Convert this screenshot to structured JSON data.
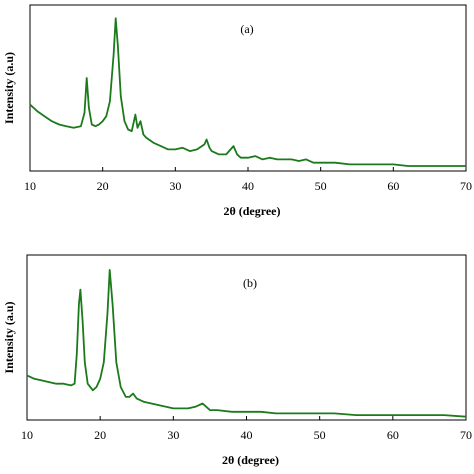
{
  "chart_data": [
    {
      "type": "line",
      "label": "(a)",
      "xlabel": "2θ (degree)",
      "ylabel": "Intensity (a.u)",
      "color": "#1b7a1b",
      "xlim": [
        10,
        70
      ],
      "xticks": [
        10,
        20,
        30,
        40,
        50,
        60,
        70
      ],
      "ylim": [
        0,
        100
      ],
      "x": [
        10,
        11,
        12,
        13,
        14,
        15,
        16,
        17,
        17.5,
        17.8,
        18.1,
        18.5,
        19,
        19.5,
        20,
        20.5,
        21,
        21.5,
        21.8,
        22.1,
        22.5,
        23,
        23.5,
        24,
        24.5,
        24.8,
        25.2,
        25.6,
        26,
        27,
        28,
        29,
        30,
        31,
        32,
        33,
        34,
        34.3,
        34.7,
        35,
        36,
        37,
        38,
        38.5,
        39,
        40,
        41,
        42,
        43,
        44,
        45,
        46,
        47,
        48,
        49,
        50,
        52,
        54,
        56,
        58,
        60,
        62,
        64,
        66,
        68,
        70
      ],
      "values": [
        40,
        36,
        33,
        30,
        28,
        27,
        26,
        27,
        35,
        56,
        38,
        28,
        27,
        28,
        30,
        33,
        42,
        70,
        92,
        75,
        45,
        30,
        25,
        24,
        34,
        26,
        30,
        22,
        20,
        17,
        15,
        13,
        13,
        14,
        12,
        13,
        16,
        19,
        14,
        12,
        10,
        10,
        15,
        10,
        8,
        8,
        9,
        7,
        8,
        7,
        7,
        7,
        6,
        7,
        5,
        5,
        5,
        4,
        4,
        4,
        4,
        3,
        3,
        3,
        3,
        3
      ]
    },
    {
      "type": "line",
      "label": "(b)",
      "xlabel": "2θ (degree)",
      "ylabel": "Intensity (a.u)",
      "color": "#1b7a1b",
      "xlim": [
        10,
        70
      ],
      "xticks": [
        10,
        20,
        30,
        40,
        50,
        60,
        70
      ],
      "ylim": [
        0,
        100
      ],
      "x": [
        10,
        11,
        12,
        13,
        14,
        15,
        16,
        16.5,
        16.8,
        17.1,
        17.3,
        17.6,
        17.9,
        18.3,
        19,
        19.5,
        20,
        20.5,
        21,
        21.3,
        21.7,
        22.2,
        22.8,
        23.5,
        24,
        24.5,
        25,
        26,
        27,
        28,
        29,
        30,
        31,
        32,
        33,
        34,
        34.5,
        35,
        36,
        38,
        40,
        42,
        44,
        46,
        48,
        50,
        52,
        55,
        58,
        61,
        64,
        67,
        70
      ],
      "values": [
        27,
        25,
        24,
        23,
        22,
        22,
        21,
        22,
        40,
        70,
        79,
        60,
        35,
        22,
        18,
        20,
        25,
        35,
        65,
        91,
        70,
        35,
        20,
        14,
        14,
        16,
        13,
        11,
        10,
        9,
        8,
        7,
        7,
        7,
        8,
        10,
        8,
        6,
        6,
        5,
        5,
        5,
        4,
        4,
        4,
        4,
        4,
        3,
        3,
        3,
        3,
        3,
        2
      ]
    }
  ]
}
